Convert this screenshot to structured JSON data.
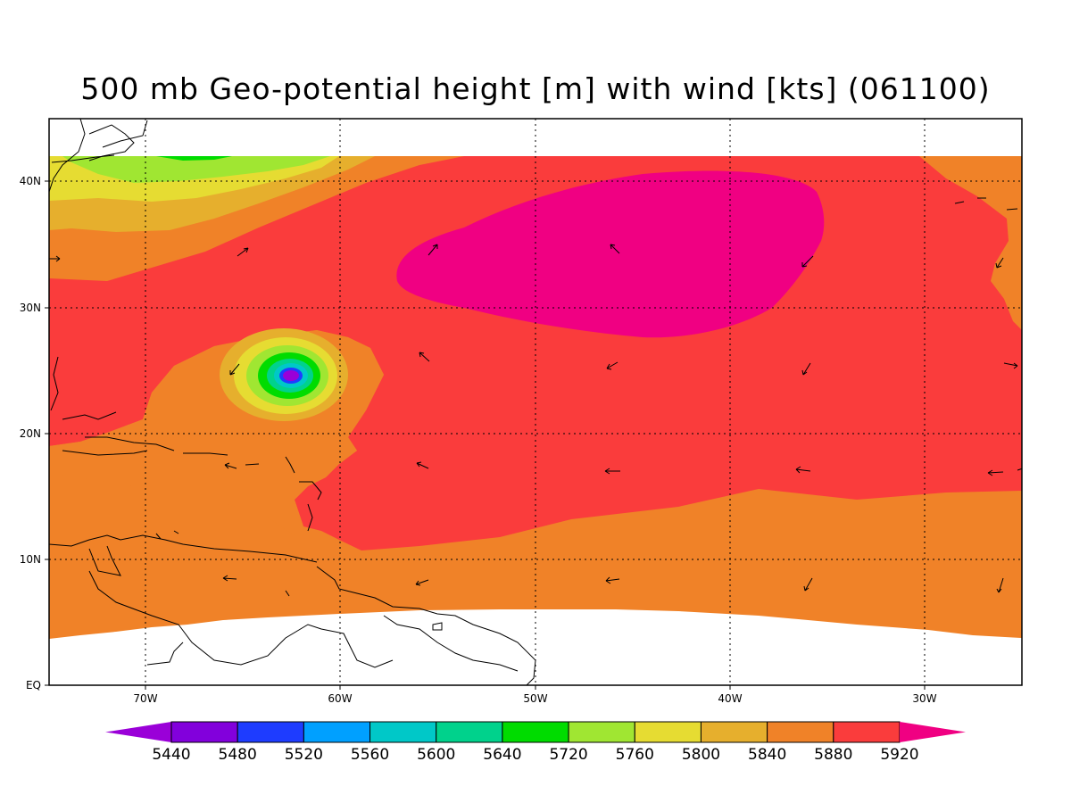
{
  "title": "500 mb Geo-potential height [m] with wind [kts] (061100)",
  "map": {
    "lat_labels": [
      "40N",
      "30N",
      "20N",
      "10N",
      "EQ"
    ],
    "lon_labels": [
      "70W",
      "60W",
      "50W",
      "40W",
      "30W"
    ]
  },
  "colorbar": {
    "labels": [
      "5440",
      "5480",
      "5520",
      "5560",
      "5600",
      "5640",
      "5720",
      "5760",
      "5800",
      "5840",
      "5880",
      "5920"
    ],
    "colors": [
      "#9a00d8",
      "#8200dc",
      "#1e3cff",
      "#00a0ff",
      "#00c8c8",
      "#00d28c",
      "#00dc00",
      "#a0e632",
      "#e6dc32",
      "#e6af2d",
      "#f08228",
      "#fa3c3c",
      "#f00082"
    ]
  },
  "colors": {
    "h5840": "#e6af2d",
    "h5880": "#f08228",
    "h5920": "#fa3c3c",
    "h5960": "#f00082"
  }
}
